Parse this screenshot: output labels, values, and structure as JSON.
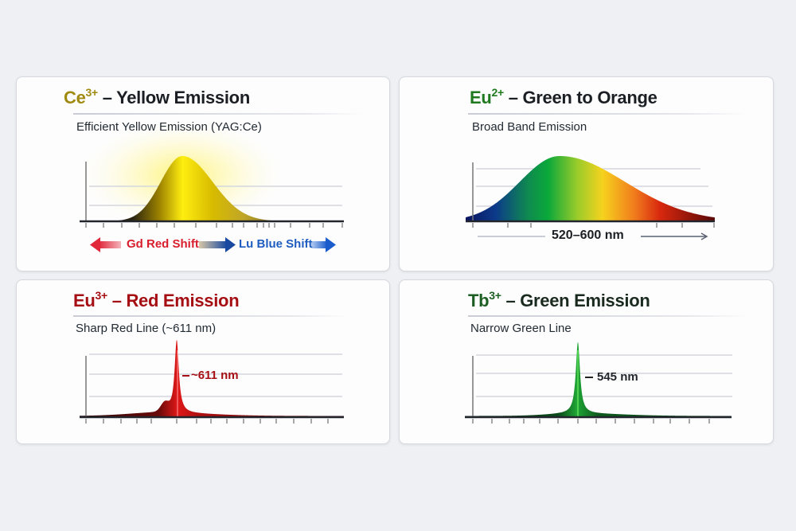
{
  "colors": {
    "background": "#eef0f4",
    "ce_accent": "#a08a10",
    "eu2_accent": "#1f7a1f",
    "eu3_accent": "#a50f14",
    "tb_accent": "#1d5e22",
    "red_shift": "#d81e2c",
    "blue_shift": "#1f5cc0"
  },
  "cards": [
    {
      "ion": "Ce",
      "charge": "3+",
      "title": " – Yellow Emission",
      "subtitle": "Efficient Yellow Emission (YAG:Ce)",
      "shift_left": "Gd Red Shift",
      "shift_right": "Lu Blue Shift"
    },
    {
      "ion": "Eu",
      "charge": "2+",
      "title": " – Green to Orange",
      "subtitle": "Broad Band Emission",
      "range_label": "520–600 nm"
    },
    {
      "ion": "Eu",
      "charge": "3+",
      "title": " – Red Emission",
      "subtitle": "Sharp Red Line (~611 nm)",
      "peak_label": "~611 nm"
    },
    {
      "ion": "Tb",
      "charge": "3+",
      "title": " – Green Emission",
      "subtitle": "Narrow Green Line",
      "peak_label": "545 nm"
    }
  ]
}
